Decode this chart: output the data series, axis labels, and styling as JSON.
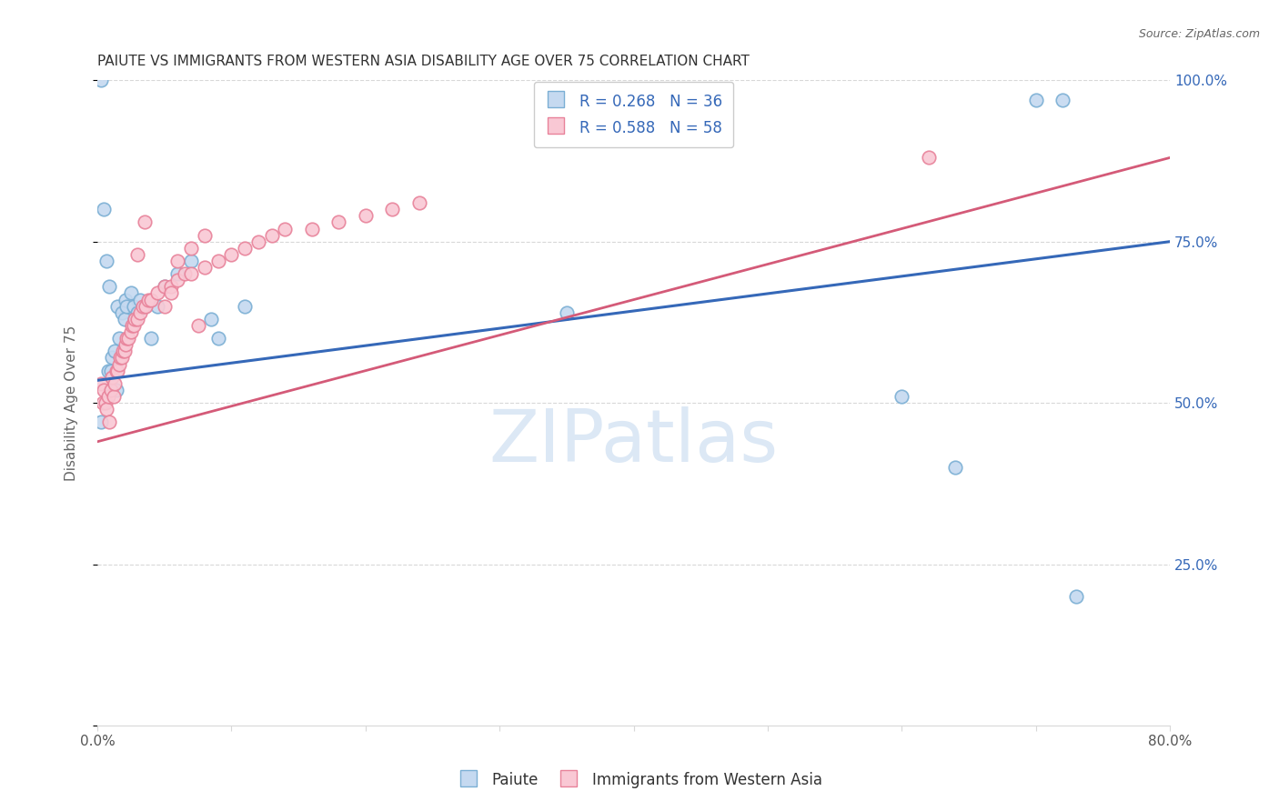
{
  "title": "PAIUTE VS IMMIGRANTS FROM WESTERN ASIA DISABILITY AGE OVER 75 CORRELATION CHART",
  "source": "Source: ZipAtlas.com",
  "ylabel": "Disability Age Over 75",
  "xmin": 0.0,
  "xmax": 0.8,
  "ymin": 0.0,
  "ymax": 1.0,
  "legend_label_1": "Paiute",
  "legend_label_2": "Immigrants from Western Asia",
  "blue_edge_color": "#7bafd4",
  "blue_face_color": "#c5d9f0",
  "pink_edge_color": "#e8829a",
  "pink_face_color": "#f9c8d4",
  "blue_line_color": "#3568b8",
  "pink_line_color": "#d45a78",
  "watermark_color": "#dce8f5",
  "title_color": "#333333",
  "ylabel_color": "#666666",
  "source_color": "#666666",
  "tick_label_color": "#3568b8",
  "grid_color": "#d8d8d8",
  "paiute_R": 0.268,
  "paiute_N": 36,
  "western_asia_R": 0.588,
  "western_asia_N": 58,
  "blue_line_x0": 0.0,
  "blue_line_y0": 0.535,
  "blue_line_x1": 0.8,
  "blue_line_y1": 0.75,
  "pink_line_x0": 0.0,
  "pink_line_x1": 0.8,
  "pink_line_y0": 0.44,
  "pink_line_y1": 0.88,
  "paiute_x": [
    0.003,
    0.003,
    0.005,
    0.007,
    0.008,
    0.009,
    0.01,
    0.011,
    0.013,
    0.014,
    0.015,
    0.016,
    0.018,
    0.02,
    0.021,
    0.022,
    0.025,
    0.027,
    0.028,
    0.03,
    0.032,
    0.035,
    0.04,
    0.045,
    0.05,
    0.06,
    0.07,
    0.085,
    0.09,
    0.11,
    0.35,
    0.6,
    0.64,
    0.7,
    0.72,
    0.73
  ],
  "paiute_y": [
    1.0,
    0.47,
    0.8,
    0.72,
    0.55,
    0.68,
    0.55,
    0.57,
    0.58,
    0.52,
    0.65,
    0.6,
    0.64,
    0.63,
    0.66,
    0.65,
    0.67,
    0.65,
    0.63,
    0.64,
    0.66,
    0.65,
    0.6,
    0.65,
    0.68,
    0.7,
    0.72,
    0.63,
    0.6,
    0.65,
    0.64,
    0.51,
    0.4,
    0.97,
    0.97,
    0.2
  ],
  "western_asia_x": [
    0.003,
    0.004,
    0.005,
    0.006,
    0.007,
    0.008,
    0.009,
    0.01,
    0.011,
    0.012,
    0.013,
    0.014,
    0.015,
    0.016,
    0.017,
    0.018,
    0.019,
    0.02,
    0.021,
    0.022,
    0.023,
    0.025,
    0.026,
    0.027,
    0.028,
    0.03,
    0.032,
    0.034,
    0.036,
    0.038,
    0.04,
    0.045,
    0.05,
    0.055,
    0.06,
    0.065,
    0.07,
    0.08,
    0.09,
    0.1,
    0.11,
    0.12,
    0.13,
    0.14,
    0.16,
    0.18,
    0.2,
    0.22,
    0.24,
    0.06,
    0.07,
    0.075,
    0.08,
    0.03,
    0.035,
    0.62,
    0.05,
    0.055
  ],
  "western_asia_y": [
    0.53,
    0.5,
    0.52,
    0.5,
    0.49,
    0.51,
    0.47,
    0.52,
    0.54,
    0.51,
    0.53,
    0.55,
    0.55,
    0.56,
    0.57,
    0.57,
    0.58,
    0.58,
    0.59,
    0.6,
    0.6,
    0.61,
    0.62,
    0.62,
    0.63,
    0.63,
    0.64,
    0.65,
    0.65,
    0.66,
    0.66,
    0.67,
    0.68,
    0.68,
    0.69,
    0.7,
    0.7,
    0.71,
    0.72,
    0.73,
    0.74,
    0.75,
    0.76,
    0.77,
    0.77,
    0.78,
    0.79,
    0.8,
    0.81,
    0.72,
    0.74,
    0.62,
    0.76,
    0.73,
    0.78,
    0.88,
    0.65,
    0.67
  ]
}
